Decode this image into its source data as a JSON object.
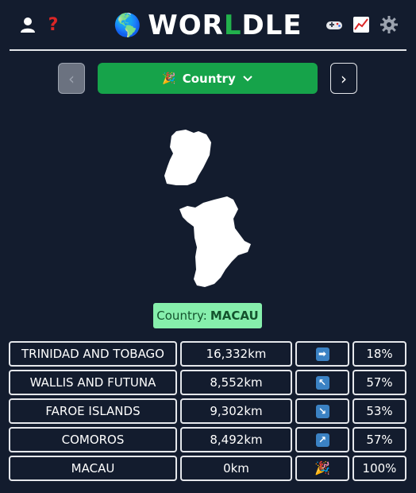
{
  "header": {
    "title_pre": "WOR",
    "title_hl": "L",
    "title_post": "DLE",
    "globe": "🌎",
    "icons": [
      "user-icon",
      "help-icon",
      "gamepad-icon",
      "stats-icon",
      "settings-icon"
    ],
    "help_glyph": "?"
  },
  "nav": {
    "prev_glyph": "‹",
    "next_glyph": "›",
    "mode_emoji": "🎉",
    "mode_label": "Country",
    "chevron": "⌄"
  },
  "answer": {
    "label": "Country:",
    "value": "MACAU"
  },
  "guesses": [
    {
      "name": "TRINIDAD AND TOBAGO",
      "distance": "16,332km",
      "direction": "➡",
      "percent": "18%"
    },
    {
      "name": "WALLIS AND FUTUNA",
      "distance": "8,552km",
      "direction": "↖",
      "percent": "57%"
    },
    {
      "name": "FAROE ISLANDS",
      "distance": "9,302km",
      "direction": "↘",
      "percent": "53%"
    },
    {
      "name": "COMOROS",
      "distance": "8,492km",
      "direction": "↗",
      "percent": "57%"
    },
    {
      "name": "MACAU",
      "distance": "0km",
      "direction": "🎉",
      "percent": "100%"
    }
  ],
  "colors": {
    "background": "#131c2e",
    "accent_green": "#16a34a",
    "answer_bg": "#86efac",
    "arrow_bg": "#3b82c4",
    "help_red": "#dc2626"
  }
}
